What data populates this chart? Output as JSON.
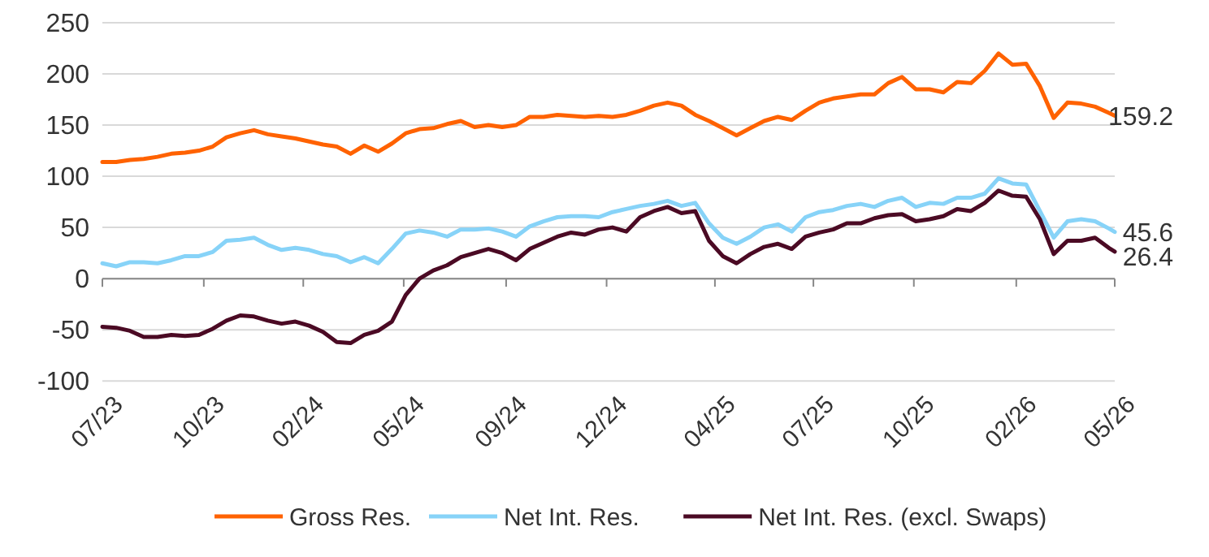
{
  "chart_data": {
    "type": "line",
    "x": [
      "2023-07-19",
      "2023-08-02",
      "2023-08-16",
      "2023-08-30",
      "2023-09-13",
      "2023-09-27",
      "2023-10-11",
      "2023-10-25",
      "2023-11-08",
      "2023-11-22",
      "2023-12-06",
      "2023-12-20",
      "2024-01-03",
      "2024-01-17",
      "2024-01-31",
      "2024-02-14",
      "2024-02-28",
      "2024-03-13",
      "2024-03-27",
      "2024-04-10",
      "2024-04-24",
      "2024-05-08",
      "2024-05-22",
      "2024-06-05",
      "2024-06-19",
      "2024-07-03",
      "2024-07-17",
      "2024-07-31",
      "2024-08-14",
      "2024-08-28",
      "2024-09-11",
      "2024-09-25",
      "2024-10-09",
      "2024-10-23",
      "2024-11-06",
      "2024-11-20",
      "2024-12-04",
      "2024-12-18",
      "2025-01-01",
      "2025-01-15",
      "2025-01-29",
      "2025-02-12",
      "2025-02-26",
      "2025-03-12",
      "2025-03-26",
      "2025-04-09",
      "2025-04-23",
      "2025-05-07",
      "2025-05-21",
      "2025-06-04",
      "2025-06-18",
      "2025-07-02",
      "2025-07-16",
      "2025-07-30",
      "2025-08-13",
      "2025-08-27",
      "2025-09-10",
      "2025-09-24",
      "2025-10-08",
      "2025-10-22",
      "2025-11-05",
      "2025-11-19",
      "2025-12-03",
      "2025-12-17",
      "2025-12-31",
      "2026-01-14",
      "2026-01-28",
      "2026-02-11",
      "2026-02-25",
      "2026-03-11",
      "2026-03-25",
      "2026-04-08",
      "2026-04-22",
      "2026-05-06",
      "2026-05-12"
    ],
    "series": [
      {
        "name": "Gross Res.",
        "color": "#ff6200",
        "values": [
          114,
          114,
          116,
          117,
          119,
          122,
          123,
          125,
          129,
          138,
          142,
          145,
          141,
          139,
          137,
          134,
          131,
          129,
          122,
          130,
          124,
          132,
          142,
          146,
          147,
          151,
          154,
          148,
          150,
          148,
          150,
          158,
          158,
          160,
          159,
          158,
          159,
          158,
          160,
          164,
          169,
          172,
          169,
          160,
          154,
          147,
          140,
          147,
          154,
          158,
          155,
          164,
          172,
          176,
          178,
          180,
          180,
          191,
          197,
          185,
          185,
          182,
          192,
          191,
          203,
          220,
          209,
          210,
          188,
          157,
          172,
          171,
          168,
          162,
          159.2
        ]
      },
      {
        "name": "Net Int. Res.",
        "color": "#87d3f8",
        "values": [
          15,
          12,
          16,
          16,
          15,
          18,
          22,
          22,
          26,
          37,
          38,
          40,
          33,
          28,
          30,
          28,
          24,
          22,
          16,
          21,
          15,
          29,
          44,
          47,
          45,
          41,
          48,
          48,
          49,
          46,
          41,
          51,
          56,
          60,
          61,
          61,
          60,
          65,
          68,
          71,
          73,
          76,
          71,
          74,
          54,
          40,
          34,
          41,
          50,
          53,
          46,
          60,
          65,
          67,
          71,
          73,
          70,
          76,
          79,
          70,
          74,
          73,
          79,
          79,
          83,
          98,
          93,
          92,
          66,
          40,
          56,
          58,
          56,
          49,
          45.6
        ]
      },
      {
        "name": "Net Int. Res. (excl. Swaps)",
        "color": "#4b0a24",
        "values": [
          -47,
          -48,
          -51,
          -57,
          -57,
          -55,
          -56,
          -55,
          -49,
          -41,
          -36,
          -37,
          -41,
          -44,
          -42,
          -46,
          -52,
          -62,
          -63,
          -55,
          -51,
          -42,
          -16,
          0,
          8,
          13,
          21,
          25,
          29,
          25,
          18,
          29,
          35,
          41,
          45,
          43,
          48,
          50,
          46,
          60,
          66,
          70,
          64,
          66,
          37,
          22,
          15,
          24,
          31,
          34,
          29,
          41,
          45,
          48,
          54,
          54,
          59,
          62,
          63,
          56,
          58,
          61,
          68,
          66,
          74,
          86,
          81,
          80,
          58,
          24,
          37,
          37,
          40,
          30,
          26.4
        ]
      }
    ],
    "xlim": [
      "2023-07-19",
      "2026-05-12"
    ],
    "xticks": [
      {
        "value": "2023-07-19",
        "label": "07/23"
      },
      {
        "value": "2023-10-30",
        "label": "10/23"
      },
      {
        "value": "2024-02-08",
        "label": "02/24"
      },
      {
        "value": "2024-05-20",
        "label": "05/24"
      },
      {
        "value": "2024-09-01",
        "label": "09/24"
      },
      {
        "value": "2024-12-12",
        "label": "12/24"
      },
      {
        "value": "2025-04-01",
        "label": "04/25"
      },
      {
        "value": "2025-07-10",
        "label": "07/25"
      },
      {
        "value": "2025-10-20",
        "label": "10/25"
      },
      {
        "value": "2026-02-01",
        "label": "02/26"
      },
      {
        "value": "2026-05-12",
        "label": "05/26"
      }
    ],
    "ylim": [
      -100,
      250
    ],
    "yticks": [
      -100,
      -50,
      0,
      50,
      100,
      150,
      200,
      250
    ],
    "grid": "y",
    "legend": "bottom",
    "line_style": "solid",
    "marker": "none",
    "annotations": [
      {
        "text": "159.2",
        "x": "2026-05-12",
        "y": 159.2
      },
      {
        "text": "45.6",
        "x": "2026-05-12",
        "y": 45.6
      },
      {
        "text": "26.4",
        "x": "2026-05-12",
        "y": 26.4
      }
    ]
  }
}
